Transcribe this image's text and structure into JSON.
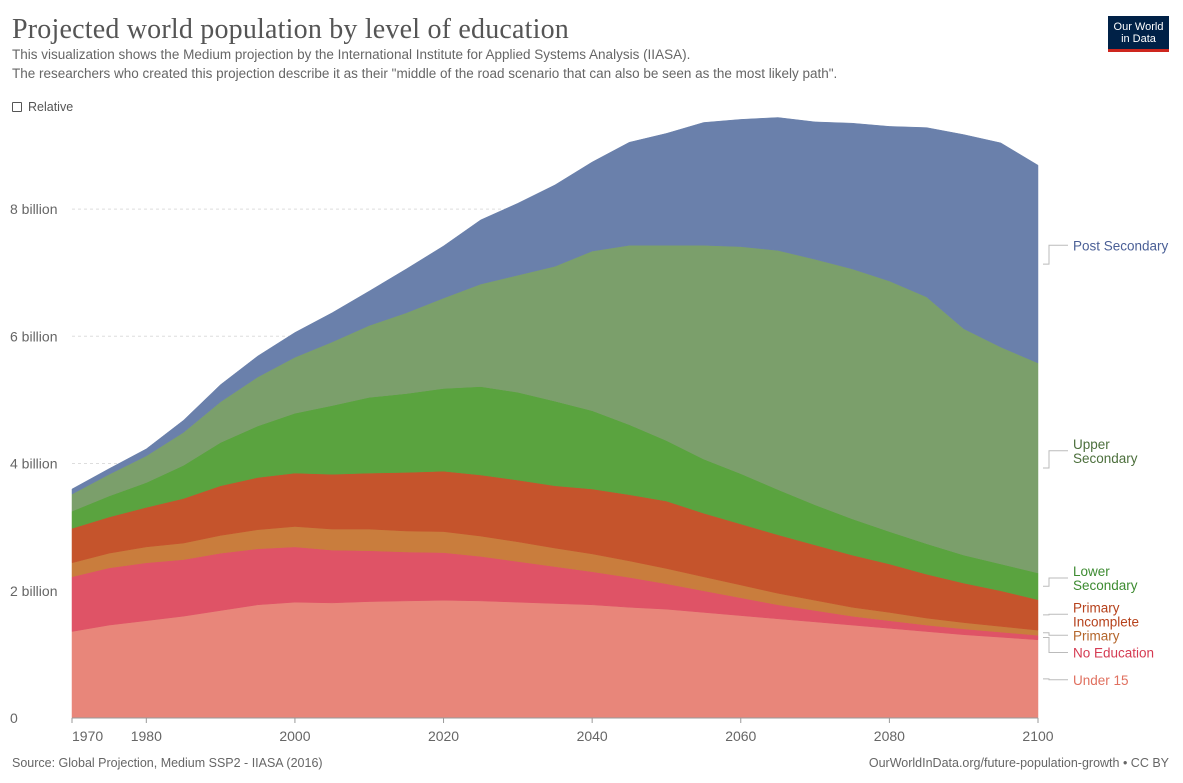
{
  "header": {
    "title": "Projected world population by level of education",
    "subtitle_line1": "This visualization shows the Medium projection by the International Institute for Applied Systems Analysis (IIASA).",
    "subtitle_line2": "The researchers who created this projection describe it as their \"middle of the road scenario that can also be seen as the most likely path\".",
    "logo_line1": "Our World",
    "logo_line2": "in Data",
    "relative_toggle_label": "Relative"
  },
  "footer": {
    "source": "Source: Global Projection, Medium SSP2 - IIASA (2016)",
    "credit": "OurWorldInData.org/future-population-growth • CC BY"
  },
  "colors": {
    "logo_bg": "#002147",
    "logo_accent": "#ce261e"
  },
  "chart_data": {
    "type": "area",
    "stacked": true,
    "x": [
      1970,
      1975,
      1980,
      1985,
      1990,
      1995,
      2000,
      2005,
      2010,
      2015,
      2020,
      2025,
      2030,
      2035,
      2040,
      2045,
      2050,
      2055,
      2060,
      2065,
      2070,
      2075,
      2080,
      2085,
      2090,
      2095,
      2100
    ],
    "xlim": [
      1970,
      2100
    ],
    "ylim": [
      0,
      9400000000
    ],
    "x_ticks": [
      {
        "value": 1970,
        "label": "1970"
      },
      {
        "value": 1980,
        "label": "1980"
      },
      {
        "value": 2000,
        "label": "2000"
      },
      {
        "value": 2020,
        "label": "2020"
      },
      {
        "value": 2040,
        "label": "2040"
      },
      {
        "value": 2060,
        "label": "2060"
      },
      {
        "value": 2080,
        "label": "2080"
      },
      {
        "value": 2100,
        "label": "2100"
      }
    ],
    "y_ticks": [
      {
        "value": 0,
        "label": "0"
      },
      {
        "value": 2000000000,
        "label": "2 billion"
      },
      {
        "value": 4000000000,
        "label": "4 billion"
      },
      {
        "value": 6000000000,
        "label": "6 billion"
      },
      {
        "value": 8000000000,
        "label": "8 billion"
      }
    ],
    "grid": true,
    "legend_placement": "right, at series end",
    "series": [
      {
        "name": "Under 15",
        "label_lines": [
          "Under 15"
        ],
        "color": "#e8867a",
        "label_color": "#e0705f",
        "label_y": 600000000,
        "values": [
          1360,
          1460,
          1530,
          1600,
          1690,
          1780,
          1820,
          1810,
          1830,
          1840,
          1850,
          1840,
          1820,
          1800,
          1780,
          1740,
          1710,
          1660,
          1610,
          1560,
          1510,
          1460,
          1410,
          1360,
          1310,
          1270,
          1230
        ]
      },
      {
        "name": "No Education",
        "label_lines": [
          "No Education"
        ],
        "color": "#df5366",
        "label_color": "#d53b52",
        "label_y": 1030000000,
        "values": [
          860,
          900,
          910,
          890,
          900,
          880,
          870,
          830,
          800,
          770,
          750,
          700,
          640,
          580,
          520,
          470,
          400,
          340,
          280,
          220,
          180,
          140,
          120,
          100,
          90,
          80,
          70
        ]
      },
      {
        "name": "Primary",
        "label_lines": [
          "Primary"
        ],
        "color": "#c97d3d",
        "label_color": "#b4662b",
        "label_y": 1300000000,
        "values": [
          220,
          230,
          250,
          260,
          280,
          300,
          320,
          330,
          340,
          330,
          330,
          320,
          310,
          290,
          280,
          260,
          240,
          220,
          200,
          180,
          160,
          140,
          130,
          110,
          100,
          90,
          80
        ]
      },
      {
        "name": "Primary Incomplete",
        "label_lines": [
          "Primary",
          "Incomplete"
        ],
        "color": "#c5542c",
        "label_color": "#b6421c",
        "label_y": 1630000000,
        "values": [
          540,
          570,
          620,
          700,
          780,
          820,
          840,
          860,
          880,
          920,
          950,
          960,
          970,
          980,
          1020,
          1040,
          1060,
          1000,
          960,
          920,
          870,
          820,
          760,
          690,
          620,
          560,
          480
        ]
      },
      {
        "name": "Lower Secondary",
        "label_lines": [
          "Lower",
          "Secondary"
        ],
        "color": "#5aa33f",
        "label_color": "#3d8b31",
        "label_y": 2200000000,
        "values": [
          270,
          330,
          390,
          520,
          680,
          810,
          940,
          1080,
          1190,
          1240,
          1300,
          1390,
          1380,
          1330,
          1230,
          1100,
          950,
          850,
          790,
          710,
          630,
          570,
          510,
          480,
          440,
          420,
          420
        ]
      },
      {
        "name": "Upper Secondary",
        "label_lines": [
          "Upper",
          "Secondary"
        ],
        "color": "#7b9f6b",
        "label_color": "#4c6f3c",
        "label_y": 4200000000,
        "values": [
          270,
          340,
          420,
          520,
          640,
          770,
          880,
          1000,
          1130,
          1270,
          1420,
          1610,
          1840,
          2120,
          2510,
          2820,
          3070,
          3360,
          3570,
          3760,
          3860,
          3930,
          3940,
          3880,
          3560,
          3410,
          3300
        ]
      },
      {
        "name": "Post Secondary",
        "label_lines": [
          "Post Secondary"
        ],
        "color": "#6a80ab",
        "label_color": "#4a5f96",
        "label_y": 7430000000,
        "values": [
          80,
          90,
          110,
          190,
          270,
          330,
          390,
          460,
          540,
          690,
          820,
          1010,
          1130,
          1280,
          1400,
          1620,
          1760,
          1930,
          2000,
          2090,
          2160,
          2290,
          2430,
          2660,
          3050,
          3210,
          3110
        ]
      }
    ],
    "value_unit": "millions"
  }
}
